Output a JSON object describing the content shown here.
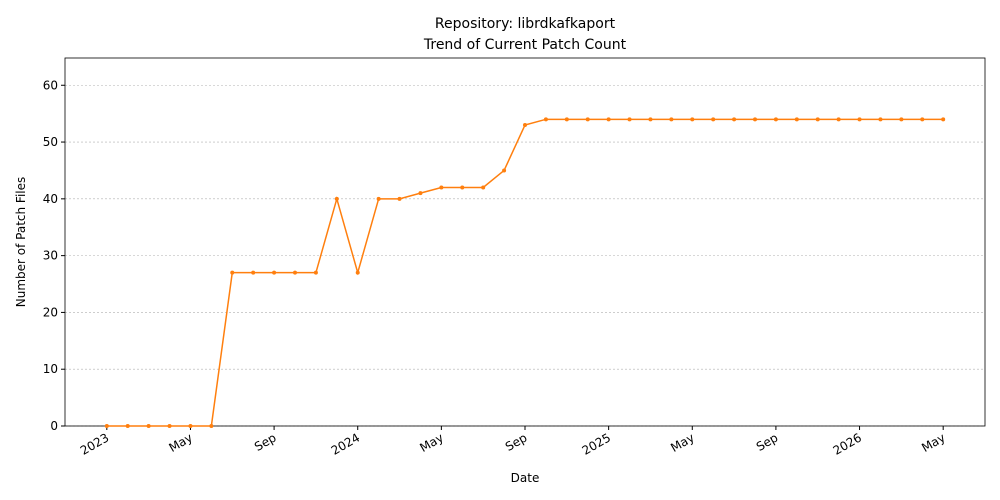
{
  "chart_data": {
    "type": "line",
    "title": "Repository: librdkafkaport",
    "subtitle": "Trend of Current Patch Count",
    "x_label": "Date",
    "y_label": "Number of Patch Files",
    "x": [
      "2023-01",
      "2023-02",
      "2023-03",
      "2023-04",
      "2023-05",
      "2023-06",
      "2023-07",
      "2023-08",
      "2023-09",
      "2023-10",
      "2023-11",
      "2023-12",
      "2024-01",
      "2024-02",
      "2024-03",
      "2024-04",
      "2024-05",
      "2024-06",
      "2024-07",
      "2024-08",
      "2024-09",
      "2024-10",
      "2024-11",
      "2024-12",
      "2025-01",
      "2025-02",
      "2025-03",
      "2025-04",
      "2025-05",
      "2025-06",
      "2025-07",
      "2025-08",
      "2025-09",
      "2025-10",
      "2025-11",
      "2025-12",
      "2026-01",
      "2026-02",
      "2026-03",
      "2026-04",
      "2026-05"
    ],
    "series": [
      {
        "name": "Patch Count",
        "color": "#ff7f0e",
        "values": [
          0,
          0,
          0,
          0,
          0,
          0,
          27,
          27,
          27,
          27,
          27,
          40,
          27,
          40,
          40,
          41,
          42,
          42,
          42,
          45,
          53,
          54,
          54,
          54,
          54,
          54,
          54,
          54,
          54,
          54,
          54,
          54,
          54,
          54,
          54,
          54,
          54,
          54,
          54,
          54,
          54
        ]
      }
    ],
    "xlim": [
      "2022-11",
      "2026-07"
    ],
    "xticks": [
      {
        "value": "2023-01",
        "label": "2023"
      },
      {
        "value": "2023-05",
        "label": "May"
      },
      {
        "value": "2023-09",
        "label": "Sep"
      },
      {
        "value": "2024-01",
        "label": "2024"
      },
      {
        "value": "2024-05",
        "label": "May"
      },
      {
        "value": "2024-09",
        "label": "Sep"
      },
      {
        "value": "2025-01",
        "label": "2025"
      },
      {
        "value": "2025-05",
        "label": "May"
      },
      {
        "value": "2025-09",
        "label": "Sep"
      },
      {
        "value": "2026-01",
        "label": "2026"
      },
      {
        "value": "2026-05",
        "label": "May"
      }
    ],
    "ylim": [
      0,
      64.8
    ],
    "yticks": [
      0,
      10,
      20,
      30,
      40,
      50,
      60
    ],
    "grid": true
  }
}
